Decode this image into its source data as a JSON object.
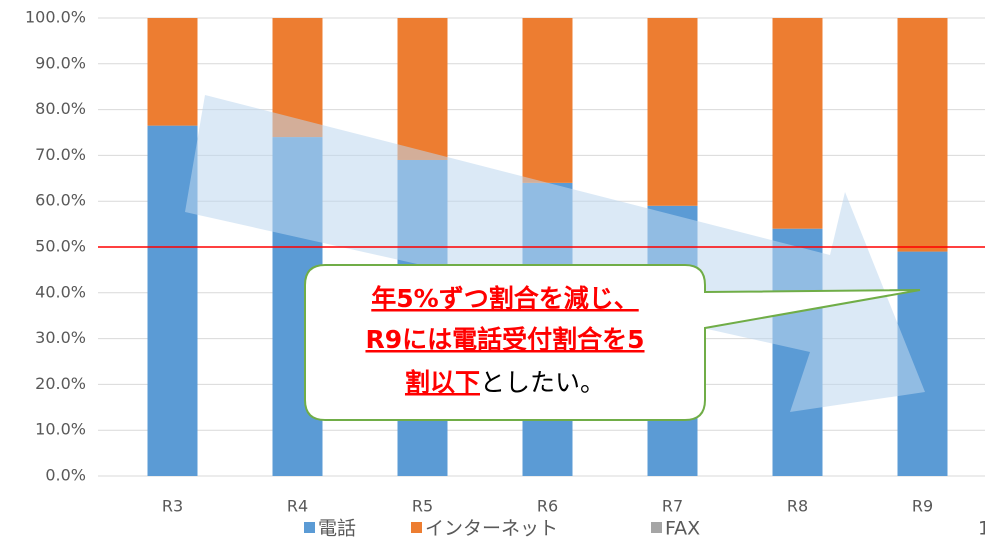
{
  "chart_data": {
    "type": "stacked_bar",
    "categories": [
      "R3",
      "R4",
      "R5",
      "R6",
      "R7",
      "R8",
      "R9"
    ],
    "series": [
      {
        "name": "電話",
        "color": "#5b9bd5",
        "values": [
          76.5,
          74,
          69,
          64,
          59,
          54,
          49
        ]
      },
      {
        "name": "インターネット",
        "color": "#ed7d31",
        "values": [
          23.5,
          26,
          31,
          36,
          41,
          46,
          51
        ]
      },
      {
        "name": "FAX",
        "color": "#a5a5a5",
        "values": [
          0,
          0,
          0,
          0,
          0,
          0,
          0
        ]
      }
    ],
    "ylim": [
      0,
      100
    ],
    "yticks": [
      {
        "value": 0,
        "label": "0.0%"
      },
      {
        "value": 10,
        "label": "10.0%"
      },
      {
        "value": 20,
        "label": "20.0%"
      },
      {
        "value": 30,
        "label": "30.0%"
      },
      {
        "value": 40,
        "label": "40.0%"
      },
      {
        "value": 50,
        "label": "50.0%"
      },
      {
        "value": 60,
        "label": "60.0%"
      },
      {
        "value": 70,
        "label": "70.0%"
      },
      {
        "value": 80,
        "label": "80.0%"
      },
      {
        "value": 90,
        "label": "90.0%"
      },
      {
        "value": 100,
        "label": "100.0%"
      }
    ],
    "grid": true,
    "reference_line": {
      "value": 50,
      "color": "#ff0000"
    },
    "legend": "bottom",
    "annotation": {
      "lines": [
        [
          {
            "text": "年5%ずつ割合を減じ、",
            "emphasis": true
          }
        ],
        [
          {
            "text": "R9には電話受付割合を5",
            "emphasis": true
          }
        ],
        [
          {
            "text": "割以下",
            "emphasis": true
          },
          {
            "text": "としたい。",
            "emphasis": false
          }
        ]
      ]
    },
    "page_number": "1"
  }
}
